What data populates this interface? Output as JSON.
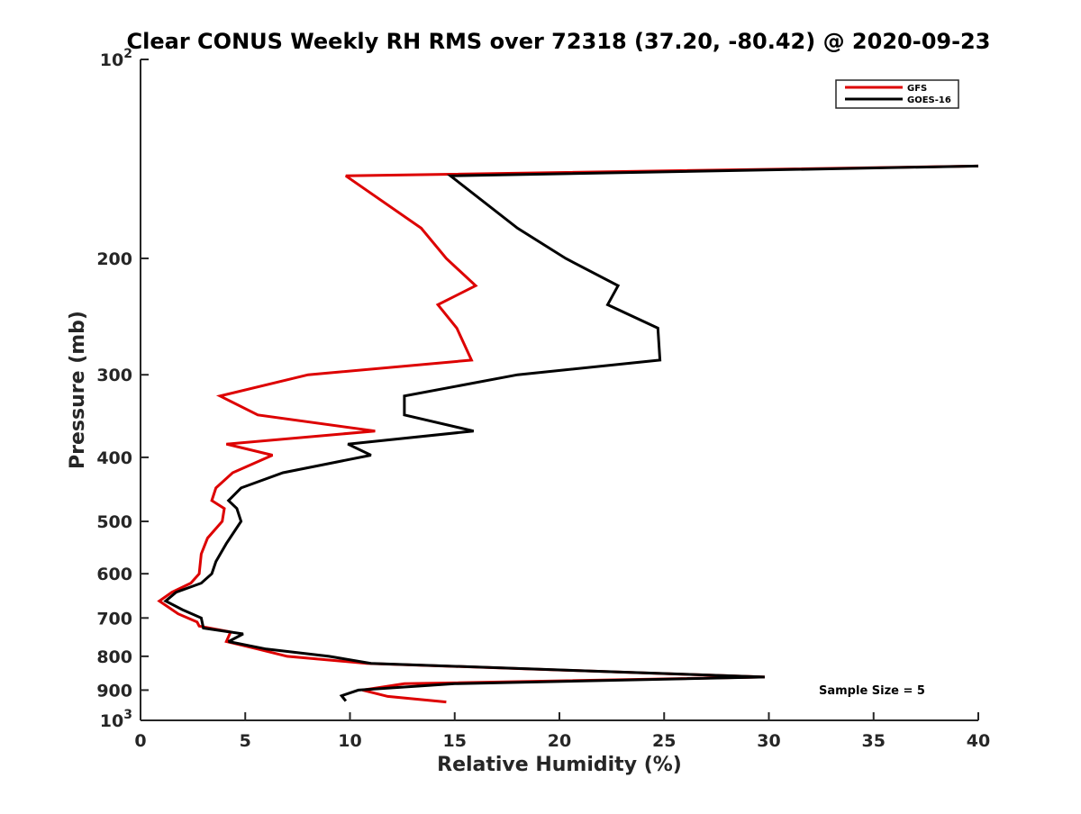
{
  "chart_data": {
    "type": "line",
    "title": "Clear CONUS Weekly RH RMS over 72318 (37.20, -80.42) @ 2020-09-23",
    "xlabel": "Relative Humidity (%)",
    "ylabel": "Pressure (mb)",
    "xlim": [
      0,
      40
    ],
    "ylim": [
      100,
      1000
    ],
    "y_scale": "log",
    "y_reversed": true,
    "grid": false,
    "legend_position": "top-right",
    "annotation": "Sample Size = 5",
    "x_ticks": [
      "0",
      "5",
      "10",
      "15",
      "20",
      "25",
      "30",
      "35",
      "40"
    ],
    "y_ticks": [
      {
        "value": 100,
        "base": "10",
        "exp": "2"
      },
      {
        "value": 200,
        "label": "200"
      },
      {
        "value": 300,
        "label": "300"
      },
      {
        "value": 400,
        "label": "400"
      },
      {
        "value": 500,
        "label": "500"
      },
      {
        "value": 600,
        "label": "600"
      },
      {
        "value": 700,
        "label": "700"
      },
      {
        "value": 800,
        "label": "800"
      },
      {
        "value": 900,
        "label": "900"
      },
      {
        "value": 1000,
        "base": "10",
        "exp": "3"
      }
    ],
    "series": [
      {
        "name": "GFS",
        "color": "#dd0000",
        "points": [
          [
            40.0,
            145
          ],
          [
            9.8,
            150
          ],
          [
            13.4,
            180
          ],
          [
            14.6,
            200
          ],
          [
            16.0,
            220
          ],
          [
            14.2,
            235
          ],
          [
            15.1,
            255
          ],
          [
            15.8,
            285
          ],
          [
            8.0,
            300
          ],
          [
            3.8,
            323
          ],
          [
            5.6,
            345
          ],
          [
            11.2,
            365
          ],
          [
            4.1,
            382
          ],
          [
            6.3,
            397
          ],
          [
            4.4,
            422
          ],
          [
            3.6,
            445
          ],
          [
            3.4,
            465
          ],
          [
            4.0,
            478
          ],
          [
            3.9,
            500
          ],
          [
            3.2,
            530
          ],
          [
            2.9,
            560
          ],
          [
            2.8,
            600
          ],
          [
            2.4,
            620
          ],
          [
            1.5,
            640
          ],
          [
            0.9,
            660
          ],
          [
            1.8,
            690
          ],
          [
            2.7,
            710
          ],
          [
            2.8,
            720
          ],
          [
            4.3,
            735
          ],
          [
            4.1,
            760
          ],
          [
            5.6,
            780
          ],
          [
            7.0,
            800
          ],
          [
            10.8,
            820
          ],
          [
            29.8,
            860
          ],
          [
            12.6,
            880
          ],
          [
            10.6,
            900
          ],
          [
            11.8,
            920
          ],
          [
            14.6,
            938
          ]
        ]
      },
      {
        "name": "GOES-16",
        "color": "#000000",
        "points": [
          [
            40.0,
            145
          ],
          [
            14.8,
            150
          ],
          [
            18.0,
            180
          ],
          [
            20.3,
            200
          ],
          [
            22.8,
            220
          ],
          [
            22.3,
            235
          ],
          [
            24.7,
            255
          ],
          [
            24.8,
            285
          ],
          [
            18.0,
            300
          ],
          [
            12.6,
            323
          ],
          [
            12.6,
            345
          ],
          [
            15.9,
            365
          ],
          [
            9.9,
            382
          ],
          [
            11.0,
            397
          ],
          [
            6.8,
            422
          ],
          [
            4.8,
            445
          ],
          [
            4.2,
            465
          ],
          [
            4.6,
            478
          ],
          [
            4.8,
            500
          ],
          [
            4.1,
            540
          ],
          [
            3.6,
            575
          ],
          [
            3.4,
            600
          ],
          [
            2.9,
            620
          ],
          [
            1.7,
            640
          ],
          [
            1.2,
            660
          ],
          [
            2.0,
            680
          ],
          [
            2.9,
            700
          ],
          [
            3.0,
            725
          ],
          [
            4.9,
            740
          ],
          [
            4.2,
            760
          ],
          [
            6.0,
            780
          ],
          [
            9.0,
            800
          ],
          [
            11.0,
            820
          ],
          [
            29.8,
            860
          ],
          [
            15.0,
            880
          ],
          [
            10.4,
            900
          ],
          [
            9.6,
            918
          ],
          [
            9.8,
            935
          ]
        ]
      }
    ]
  }
}
